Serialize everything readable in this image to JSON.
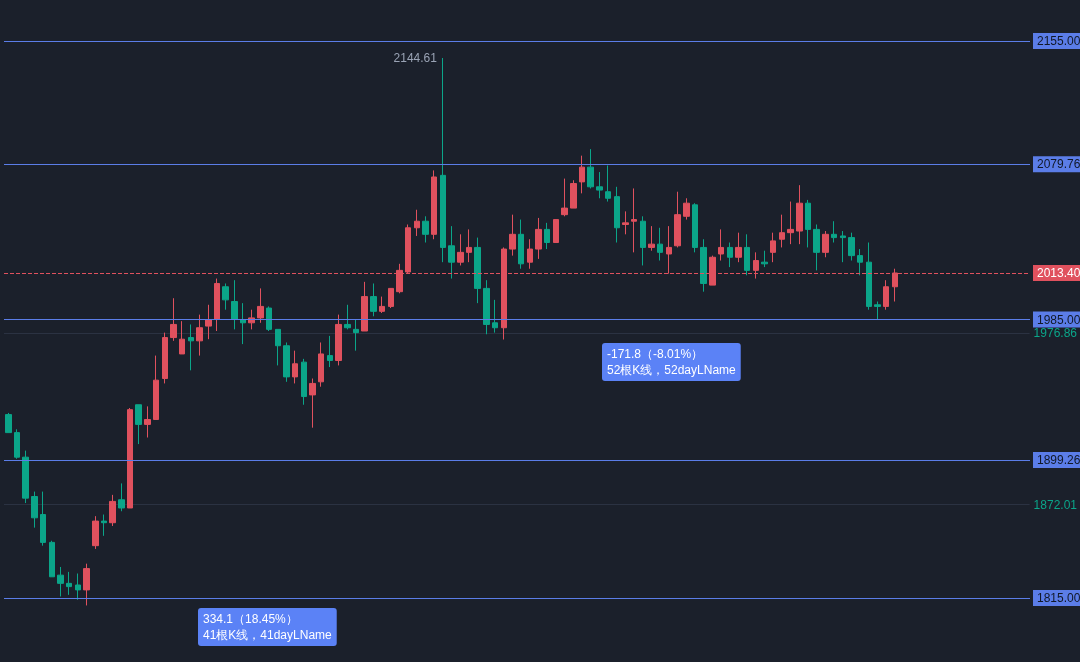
{
  "chart_data": {
    "type": "candlestick",
    "categories": [
      null,
      null,
      null,
      null,
      null,
      null,
      null,
      null,
      null,
      null,
      null,
      null,
      null,
      null,
      null,
      null,
      null,
      null,
      null,
      null,
      null,
      null,
      null,
      null,
      null,
      null,
      null,
      null,
      null,
      null,
      null,
      null,
      null,
      null,
      null,
      null,
      null,
      null,
      null,
      null,
      null,
      null,
      null,
      null,
      null,
      null,
      null,
      null,
      null,
      null,
      null,
      null,
      null,
      null,
      null,
      null,
      null,
      null,
      null,
      null,
      null,
      null,
      null,
      null,
      null,
      null,
      null,
      null,
      null,
      null,
      null,
      null,
      null,
      null,
      null,
      null,
      null,
      null,
      null,
      null,
      null,
      null,
      null,
      null,
      null,
      null,
      null,
      null,
      null,
      null,
      null,
      null,
      null,
      null,
      null,
      null,
      null,
      null,
      null,
      null,
      null,
      null,
      null,
      null,
      null,
      null,
      null,
      null,
      null,
      null,
      null,
      null,
      null,
      null,
      null,
      null,
      null,
      null
    ],
    "ohlc": [
      [
        1927,
        1928,
        1916,
        1916
      ],
      [
        1916,
        1918,
        1900,
        1901
      ],
      [
        1901,
        1905,
        1873,
        1876
      ],
      [
        1877,
        1880,
        1858,
        1864
      ],
      [
        1866,
        1880,
        1847,
        1849
      ],
      [
        1849,
        1850,
        1828,
        1828
      ],
      [
        1829,
        1834,
        1816,
        1824
      ],
      [
        1824,
        1831,
        1817,
        1822
      ],
      [
        1823,
        1830,
        1814,
        1820
      ],
      [
        1820,
        1836,
        1810.51,
        1833
      ],
      [
        1847,
        1865,
        1845,
        1862
      ],
      [
        1862,
        1866,
        1853,
        1861
      ],
      [
        1861,
        1878,
        1859,
        1874
      ],
      [
        1875,
        1885,
        1868,
        1870
      ],
      [
        1870,
        1931,
        1870,
        1930
      ],
      [
        1933,
        1933,
        1909,
        1921
      ],
      [
        1921,
        1932,
        1913,
        1924
      ],
      [
        1924,
        1963,
        1924,
        1948
      ],
      [
        1949,
        1977,
        1946,
        1974
      ],
      [
        1974,
        1998,
        1972,
        1982
      ],
      [
        1964,
        1984,
        1964,
        1973
      ],
      [
        1974,
        1982,
        1954,
        1972
      ],
      [
        1972,
        1988,
        1963,
        1980
      ],
      [
        1981,
        1994,
        1973,
        1985
      ],
      [
        1985,
        2010,
        1978,
        2007
      ],
      [
        2005,
        2007,
        1991,
        1997
      ],
      [
        1996,
        2009,
        1979,
        1985
      ],
      [
        1985,
        1995,
        1970,
        1983
      ],
      [
        1983,
        1991,
        1979,
        1986
      ],
      [
        1986,
        2004,
        1983,
        1993
      ],
      [
        1992,
        1993,
        1978,
        1979
      ],
      [
        1979,
        1979,
        1957,
        1969
      ],
      [
        1969,
        1971,
        1947,
        1950
      ],
      [
        1950,
        1966,
        1946,
        1958
      ],
      [
        1959,
        1961,
        1933,
        1938
      ],
      [
        1939,
        1949,
        1919,
        1946
      ],
      [
        1947,
        1971,
        1944,
        1964
      ],
      [
        1963,
        1975,
        1956,
        1960
      ],
      [
        1960,
        1988,
        1957,
        1982
      ],
      [
        1982,
        1994,
        1979,
        1980
      ],
      [
        1979,
        1985,
        1966,
        1977
      ],
      [
        1978,
        2008,
        1978,
        1999
      ],
      [
        1999,
        2007,
        1987,
        1990
      ],
      [
        1990,
        1999,
        1989,
        1993
      ],
      [
        1993,
        2004,
        1992,
        2004
      ],
      [
        2002,
        2019,
        2001,
        2015
      ],
      [
        2014,
        2043,
        2013,
        2041
      ],
      [
        2041,
        2052,
        2036,
        2045
      ],
      [
        2045,
        2048,
        2032,
        2037
      ],
      [
        2037,
        2076,
        2034,
        2072
      ],
      [
        2073,
        2144.61,
        2020,
        2029
      ],
      [
        2030,
        2042,
        2010,
        2020
      ],
      [
        2020,
        2037,
        2018,
        2026
      ],
      [
        2026,
        2040,
        2020,
        2029
      ],
      [
        2029,
        2035,
        1995,
        2004
      ],
      [
        2004,
        2009,
        1976,
        1982
      ],
      [
        1983,
        1997,
        1977,
        1980
      ],
      [
        1980,
        2029,
        1972.81,
        2028
      ],
      [
        2028,
        2049,
        2024,
        2037
      ],
      [
        2037,
        2046,
        2016,
        2019
      ],
      [
        2020,
        2034,
        2016,
        2028
      ],
      [
        2028,
        2047,
        2022,
        2040
      ],
      [
        2040,
        2044,
        2028,
        2032
      ],
      [
        2032,
        2046,
        2032,
        2046
      ],
      [
        2049,
        2071,
        2048,
        2053
      ],
      [
        2053,
        2070,
        2053,
        2068
      ],
      [
        2069,
        2085,
        2062,
        2078
      ],
      [
        2078,
        2089,
        2065,
        2066
      ],
      [
        2066,
        2075,
        2059,
        2064
      ],
      [
        2063,
        2079,
        2057,
        2059
      ],
      [
        2060,
        2066,
        2032,
        2041
      ],
      [
        2043,
        2051,
        2037,
        2044
      ],
      [
        2045,
        2065,
        2026,
        2046
      ],
      [
        2045,
        2048,
        2018,
        2029
      ],
      [
        2029,
        2042,
        2027,
        2031
      ],
      [
        2031,
        2041,
        2021,
        2026
      ],
      [
        2025,
        2042,
        2013,
        2029
      ],
      [
        2030,
        2063,
        2029,
        2049
      ],
      [
        2048,
        2059,
        2046,
        2056
      ],
      [
        2055,
        2056,
        2026,
        2029
      ],
      [
        2029,
        2034,
        2002,
        2007
      ],
      [
        2006,
        2024,
        2006,
        2023
      ],
      [
        2025,
        2040,
        2021,
        2029
      ],
      [
        2029,
        2032,
        2017,
        2023
      ],
      [
        2023,
        2038,
        2020,
        2029
      ],
      [
        2029,
        2037,
        2012,
        2015
      ],
      [
        2015,
        2026,
        2010,
        2021
      ],
      [
        2020,
        2027,
        2017,
        2019
      ],
      [
        2026,
        2038,
        2020,
        2033
      ],
      [
        2034,
        2049,
        2029,
        2038
      ],
      [
        2038,
        2057,
        2031,
        2040
      ],
      [
        2039,
        2067,
        2031,
        2056
      ],
      [
        2056,
        2058,
        2029,
        2040
      ],
      [
        2040,
        2043,
        2015,
        2026
      ],
      [
        2026,
        2039,
        2023,
        2037
      ],
      [
        2037,
        2045,
        2032,
        2035
      ],
      [
        2036,
        2039,
        2020,
        2035
      ],
      [
        2035,
        2038,
        2021,
        2024
      ],
      [
        2024,
        2028,
        2012,
        2020
      ],
      [
        2020,
        2032,
        1991,
        1993
      ],
      [
        1994,
        1996,
        1985,
        1993
      ],
      [
        1993,
        2009,
        1991,
        2005
      ],
      [
        2005,
        2016,
        1996,
        2013.4
      ],
      null,
      null,
      null,
      null,
      null,
      null,
      null,
      null,
      null,
      null,
      null,
      null,
      null,
      null,
      null
    ],
    "ylim": [
      1776,
      2180
    ],
    "yticks": [
      1872.01,
      1976.86
    ],
    "grid": "y",
    "tick_labels": "y",
    "ref_lines": [
      {
        "axis": "y",
        "value": 2155,
        "label": "2155.00",
        "color": "#5b7de8",
        "line_style": "solid"
      },
      {
        "axis": "y",
        "value": 2079.76,
        "label": "2079.76",
        "color": "#5b7de8",
        "line_style": "solid"
      },
      {
        "axis": "y",
        "value": 2013.4,
        "label": "2013.40",
        "color": "#e0515e",
        "line_style": "dashed"
      },
      {
        "axis": "y",
        "value": 1985,
        "label": "1985.00",
        "color": "#5b7de8",
        "line_style": "solid"
      },
      {
        "axis": "y",
        "value": 1899.26,
        "label": "1899.26",
        "color": "#5b7de8",
        "line_style": "solid"
      },
      {
        "axis": "y",
        "value": 1815,
        "label": "1815.00",
        "color": "#5b7de8",
        "line_style": "solid"
      }
    ],
    "annotations": [
      "2144.61",
      "334.1（18.45%）\n41根K线，41dayLName",
      "-171.8（-8.01%）\n52根K线，52dayLName"
    ]
  }
}
